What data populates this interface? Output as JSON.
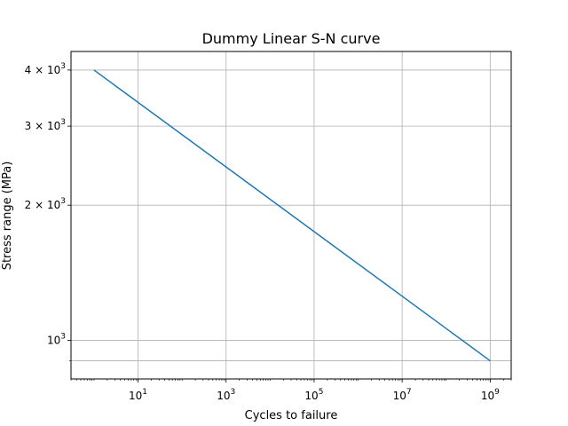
{
  "chart_data": {
    "type": "line",
    "title": "Dummy Linear S-N curve",
    "xlabel": "Cycles to failure",
    "ylabel": "Stress range (MPa)",
    "xscale": "log",
    "yscale": "log",
    "grid": true,
    "xlim": [
      0.3,
      3000000000
    ],
    "ylim": [
      820,
      4400
    ],
    "xticks": [
      {
        "value": 10,
        "base": "10",
        "exp": "1"
      },
      {
        "value": 1000,
        "base": "10",
        "exp": "3"
      },
      {
        "value": 100000,
        "base": "10",
        "exp": "5"
      },
      {
        "value": 10000000,
        "base": "10",
        "exp": "7"
      },
      {
        "value": 1000000000,
        "base": "10",
        "exp": "9"
      }
    ],
    "yticks": [
      {
        "value": 1000,
        "base": "10",
        "exp": "3"
      },
      {
        "value": 2000,
        "mult": "2 × ",
        "base": "10",
        "exp": "3"
      },
      {
        "value": 3000,
        "mult": "3 × ",
        "base": "10",
        "exp": "3"
      },
      {
        "value": 4000,
        "mult": "4 × ",
        "base": "10",
        "exp": "3"
      }
    ],
    "series": [
      {
        "color": "#1f77b4",
        "x": [
          1,
          1000000000
        ],
        "y": [
          4000,
          900
        ]
      }
    ]
  }
}
